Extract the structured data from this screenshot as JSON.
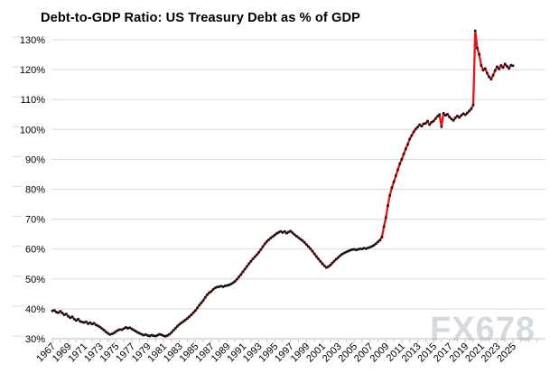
{
  "title": "Debt-to-GDP Ratio: US Treasury Debt as % of GDP",
  "watermark": "FX678",
  "colors": {
    "line": "#ee1111",
    "marker": "#141414",
    "grid": "#d9d9d9",
    "axis": "#bfbfbf",
    "tick": "#c6c6c6",
    "text": "#000000"
  },
  "chart_data": {
    "type": "line",
    "title": "Debt-to-GDP Ratio: US Treasury Debt as % of GDP",
    "xlabel": "",
    "ylabel": "",
    "frequency": "quarterly",
    "x_start_year": 1967,
    "x_end_year": 2025,
    "ylim": [
      30,
      130
    ],
    "ytick_step": 10,
    "grid": "horizontal",
    "legend_position": "none",
    "ytick_labels": [
      "30%",
      "40%",
      "50%",
      "60%",
      "70%",
      "80%",
      "90%",
      "100%",
      "110%",
      "120%",
      "130%"
    ],
    "xtick_labels": [
      "1967",
      "1969",
      "1971",
      "1973",
      "1975",
      "1977",
      "1979",
      "1981",
      "1983",
      "1985",
      "1987",
      "1989",
      "1991",
      "1993",
      "1995",
      "1997",
      "1999",
      "2001",
      "2003",
      "2005",
      "2007",
      "2009",
      "2011",
      "2013",
      "2015",
      "2017",
      "2019",
      "2021",
      "2023",
      "2025"
    ],
    "series": [
      {
        "name": "US Treasury debt as % of GDP",
        "start": "1967Q1",
        "values": [
          39.3,
          39.5,
          38.9,
          38.7,
          39.2,
          38.6,
          38.0,
          38.3,
          37.5,
          37.0,
          37.4,
          36.6,
          36.1,
          36.6,
          35.8,
          35.6,
          35.4,
          35.7,
          35.0,
          35.4,
          34.9,
          35.2,
          34.6,
          34.3,
          33.9,
          33.4,
          32.9,
          32.3,
          31.8,
          31.4,
          31.6,
          31.9,
          32.4,
          32.8,
          33.1,
          33.0,
          33.4,
          33.8,
          33.5,
          33.7,
          33.3,
          32.9,
          32.5,
          32.1,
          31.8,
          31.5,
          31.2,
          31.4,
          31.1,
          30.9,
          31.2,
          31.0,
          30.9,
          31.2,
          31.5,
          31.3,
          31.0,
          30.8,
          31.1,
          31.5,
          32.1,
          32.8,
          33.5,
          34.2,
          34.8,
          35.3,
          35.8,
          36.3,
          36.8,
          37.4,
          38.0,
          38.7,
          39.4,
          40.3,
          41.2,
          42.0,
          42.8,
          43.8,
          44.7,
          45.4,
          45.8,
          46.5,
          47.0,
          47.3,
          47.4,
          47.6,
          47.4,
          47.7,
          47.8,
          48.0,
          48.3,
          48.7,
          49.2,
          49.9,
          50.7,
          51.5,
          52.4,
          53.3,
          54.2,
          55.1,
          55.9,
          56.7,
          57.4,
          58.1,
          58.9,
          59.8,
          60.8,
          61.7,
          62.5,
          63.1,
          63.7,
          64.2,
          64.7,
          65.2,
          65.6,
          65.9,
          65.5,
          65.9,
          65.3,
          65.7,
          66.0,
          65.4,
          64.8,
          64.3,
          63.8,
          63.3,
          62.8,
          62.2,
          61.5,
          60.8,
          60.1,
          59.3,
          58.4,
          57.5,
          56.7,
          55.9,
          55.1,
          54.4,
          53.8,
          54.1,
          54.6,
          55.3,
          56.0,
          56.6,
          57.2,
          57.8,
          58.3,
          58.7,
          59.0,
          59.3,
          59.6,
          59.8,
          59.9,
          59.7,
          59.9,
          60.1,
          60.0,
          60.3,
          60.1,
          60.4,
          60.6,
          60.9,
          61.3,
          61.8,
          62.4,
          63.0,
          64.0,
          67.5,
          70.5,
          74.5,
          78.0,
          80.5,
          82.5,
          84.5,
          86.5,
          88.5,
          90.0,
          91.8,
          93.5,
          95.0,
          96.8,
          98.0,
          99.2,
          100.1,
          100.8,
          101.6,
          101.1,
          101.9,
          102.0,
          102.8,
          101.6,
          102.4,
          102.8,
          103.6,
          104.4,
          105.0,
          100.9,
          105.4,
          104.7,
          105.1,
          104.2,
          103.5,
          103.0,
          103.9,
          104.5,
          104.0,
          104.7,
          105.3,
          104.9,
          105.5,
          106.2,
          106.9,
          108.2,
          133.0,
          127.2,
          125.1,
          121.4,
          119.8,
          120.4,
          118.8,
          117.6,
          116.8,
          118.1,
          119.7,
          121.0,
          120.2,
          121.4,
          120.7,
          121.9,
          121.1,
          120.4,
          121.5,
          121.3
        ]
      }
    ]
  }
}
